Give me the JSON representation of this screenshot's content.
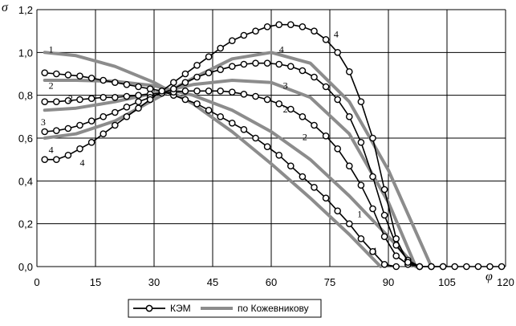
{
  "chart_data": {
    "type": "line",
    "title": "",
    "xlabel": "φ",
    "ylabel": "σ",
    "xlim": [
      0,
      120
    ],
    "ylim": [
      0,
      1.2
    ],
    "x_ticks": [
      "0",
      "15",
      "30",
      "45",
      "60",
      "75",
      "90",
      "105",
      "120"
    ],
    "y_ticks": [
      "0,0",
      "0,2",
      "0,4",
      "0,6",
      "0,8",
      "1,0",
      "1,2"
    ],
    "grid": true,
    "legend": {
      "position": "bottom-center",
      "entries": [
        "КЭМ",
        "по Кожевникову"
      ]
    },
    "colors": {
      "kem": "#000000",
      "kozhevnikov": "#8c8c8c",
      "grid": "#000000",
      "background": "#ffffff"
    },
    "series": [
      {
        "group": "КЭМ",
        "label": "1",
        "marker": "circle",
        "x": [
          2,
          5,
          8,
          11,
          14,
          17,
          20,
          23,
          26,
          29,
          32,
          35,
          38,
          41,
          44,
          47,
          50,
          53,
          56,
          59,
          62,
          65,
          68,
          71,
          74,
          77,
          80,
          83,
          86,
          89,
          92
        ],
        "y": [
          0.905,
          0.9,
          0.895,
          0.89,
          0.88,
          0.87,
          0.86,
          0.85,
          0.84,
          0.83,
          0.82,
          0.8,
          0.78,
          0.76,
          0.73,
          0.7,
          0.67,
          0.64,
          0.6,
          0.56,
          0.52,
          0.47,
          0.42,
          0.37,
          0.32,
          0.26,
          0.2,
          0.13,
          0.07,
          0.01,
          0.0
        ]
      },
      {
        "group": "КЭМ",
        "label": "2",
        "marker": "circle",
        "x": [
          2,
          5,
          8,
          11,
          14,
          17,
          20,
          23,
          26,
          29,
          32,
          35,
          38,
          41,
          44,
          47,
          50,
          53,
          56,
          59,
          62,
          65,
          68,
          71,
          74,
          77,
          80,
          83,
          86,
          89,
          92,
          95,
          98
        ],
        "y": [
          0.77,
          0.77,
          0.775,
          0.78,
          0.785,
          0.79,
          0.79,
          0.795,
          0.8,
          0.805,
          0.81,
          0.815,
          0.82,
          0.82,
          0.82,
          0.82,
          0.815,
          0.805,
          0.795,
          0.78,
          0.76,
          0.735,
          0.7,
          0.66,
          0.61,
          0.55,
          0.47,
          0.38,
          0.27,
          0.14,
          0.05,
          0.01,
          0.0
        ]
      },
      {
        "group": "КЭМ",
        "label": "3",
        "marker": "circle",
        "x": [
          2,
          5,
          8,
          11,
          14,
          17,
          20,
          23,
          26,
          29,
          32,
          35,
          38,
          41,
          44,
          47,
          50,
          53,
          56,
          59,
          62,
          65,
          68,
          71,
          74,
          77,
          80,
          83,
          86,
          89,
          92,
          95,
          98,
          101,
          104,
          107,
          110,
          113,
          116,
          119
        ],
        "y": [
          0.63,
          0.635,
          0.645,
          0.66,
          0.68,
          0.7,
          0.72,
          0.745,
          0.77,
          0.79,
          0.81,
          0.83,
          0.86,
          0.885,
          0.905,
          0.92,
          0.935,
          0.945,
          0.95,
          0.95,
          0.945,
          0.935,
          0.915,
          0.885,
          0.84,
          0.78,
          0.7,
          0.58,
          0.42,
          0.24,
          0.1,
          0.03,
          0.0,
          0.0,
          0.0,
          0.0,
          0.0,
          0.0,
          0.0,
          0.0
        ]
      },
      {
        "group": "КЭМ",
        "label": "4",
        "marker": "circle",
        "x": [
          2,
          5,
          8,
          11,
          14,
          17,
          20,
          23,
          26,
          29,
          32,
          35,
          38,
          41,
          44,
          47,
          50,
          53,
          56,
          59,
          62,
          65,
          68,
          71,
          74,
          77,
          80,
          83,
          86,
          89,
          92,
          95,
          98,
          101,
          104
        ],
        "y": [
          0.5,
          0.5,
          0.52,
          0.55,
          0.58,
          0.62,
          0.66,
          0.7,
          0.74,
          0.78,
          0.82,
          0.86,
          0.9,
          0.94,
          0.98,
          1.02,
          1.055,
          1.08,
          1.1,
          1.12,
          1.13,
          1.13,
          1.12,
          1.1,
          1.06,
          1.0,
          0.91,
          0.77,
          0.6,
          0.36,
          0.13,
          0.02,
          0.0,
          0.0,
          0.0
        ]
      },
      {
        "group": "по Кожевникову",
        "label": "1",
        "x": [
          2,
          10,
          20,
          30,
          40,
          50,
          60,
          70,
          80,
          88
        ],
        "y": [
          1.0,
          0.985,
          0.935,
          0.86,
          0.76,
          0.63,
          0.48,
          0.32,
          0.15,
          0.0
        ]
      },
      {
        "group": "по Кожевникову",
        "label": "2",
        "x": [
          2,
          10,
          20,
          30,
          40,
          50,
          60,
          70,
          80,
          90,
          97
        ],
        "y": [
          0.87,
          0.87,
          0.865,
          0.845,
          0.8,
          0.73,
          0.63,
          0.5,
          0.33,
          0.14,
          0.0
        ]
      },
      {
        "group": "по Кожевникову",
        "label": "3",
        "x": [
          2,
          10,
          20,
          30,
          40,
          50,
          60,
          70,
          80,
          90,
          97
        ],
        "y": [
          0.73,
          0.74,
          0.77,
          0.81,
          0.85,
          0.87,
          0.86,
          0.79,
          0.62,
          0.3,
          0.0
        ]
      },
      {
        "group": "по Кожевникову",
        "label": "4",
        "x": [
          2,
          10,
          20,
          30,
          40,
          50,
          60,
          70,
          80,
          90,
          101
        ],
        "y": [
          0.6,
          0.62,
          0.68,
          0.78,
          0.88,
          0.97,
          1.0,
          0.95,
          0.77,
          0.45,
          0.0
        ]
      }
    ],
    "curve_labels": [
      {
        "text": "1",
        "x": 3,
        "y": 1.0
      },
      {
        "text": "2",
        "x": 3,
        "y": 0.83
      },
      {
        "text": "3",
        "x": 1,
        "y": 0.66
      },
      {
        "text": "4",
        "x": 3,
        "y": 0.53
      },
      {
        "text": "2",
        "x": 8,
        "y": 0.77
      },
      {
        "text": "4",
        "x": 11,
        "y": 0.47
      },
      {
        "text": "4",
        "x": 62,
        "y": 1.0
      },
      {
        "text": "3",
        "x": 63,
        "y": 0.83
      },
      {
        "text": "2",
        "x": 63,
        "y": 0.72
      },
      {
        "text": "2",
        "x": 68,
        "y": 0.59
      },
      {
        "text": "4",
        "x": 76,
        "y": 1.07
      },
      {
        "text": "1",
        "x": 82,
        "y": 0.23
      },
      {
        "text": "1",
        "x": 86,
        "y": 0.06
      }
    ]
  }
}
